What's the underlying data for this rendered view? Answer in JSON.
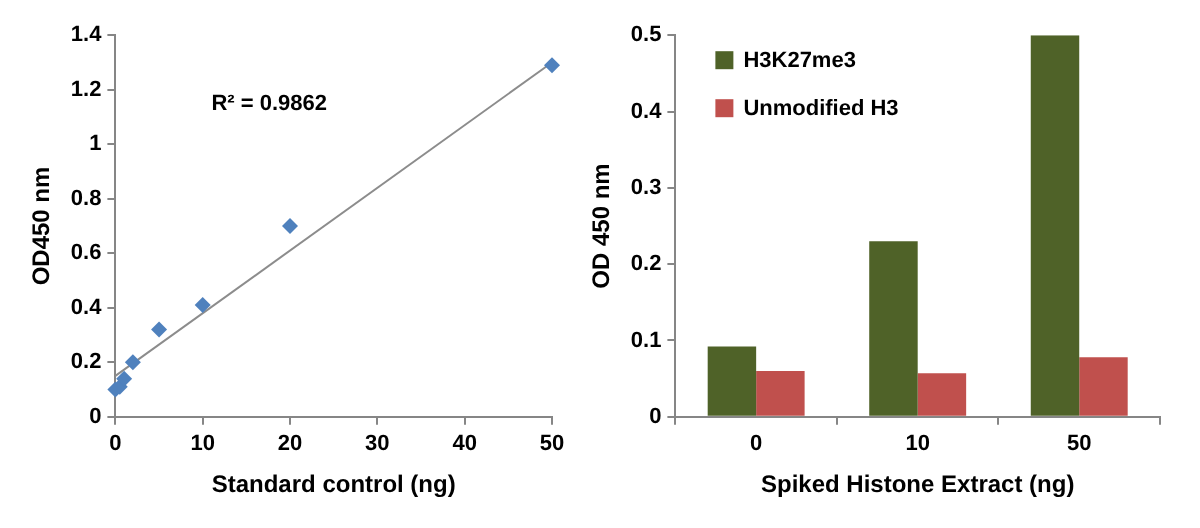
{
  "chart_data": [
    {
      "type": "scatter",
      "xlabel": "Standard control (ng)",
      "ylabel": "OD450 nm",
      "xlim": [
        0,
        50
      ],
      "xticks": [
        0,
        10,
        20,
        30,
        40,
        50
      ],
      "ylim": [
        0,
        1.4
      ],
      "yticks": [
        0,
        0.2,
        0.4,
        0.6,
        0.8,
        1,
        1.2,
        1.4
      ],
      "grid": false,
      "marker": "diamond",
      "annotations": [
        "R² = 0.9862"
      ],
      "series": [
        {
          "color": "#4f81bd",
          "x": [
            0,
            0.5,
            1,
            2,
            5,
            10,
            20,
            50
          ],
          "values": [
            0.1,
            0.11,
            0.14,
            0.2,
            0.32,
            0.41,
            0.7,
            1.29
          ]
        },
        {
          "type": "line",
          "color": "#8c8c8c",
          "x": [
            0,
            50
          ],
          "values": [
            0.15,
            1.3
          ],
          "marker": "none"
        }
      ]
    },
    {
      "type": "bar",
      "categories": [
        "0",
        "10",
        "50"
      ],
      "xlabel": "Spiked Histone Extract (ng)",
      "ylabel": "OD 450 nm",
      "ylim": [
        0,
        0.5
      ],
      "yticks": [
        0,
        0.1,
        0.2,
        0.3,
        0.4,
        0.5
      ],
      "grid": false,
      "legend": "top left",
      "series": [
        {
          "name": "H3K27me3",
          "color": "#4f6228",
          "values": [
            0.092,
            0.23,
            0.5
          ]
        },
        {
          "name": "Unmodified H3",
          "color": "#c0504d",
          "values": [
            0.06,
            0.057,
            0.078
          ]
        }
      ]
    }
  ]
}
